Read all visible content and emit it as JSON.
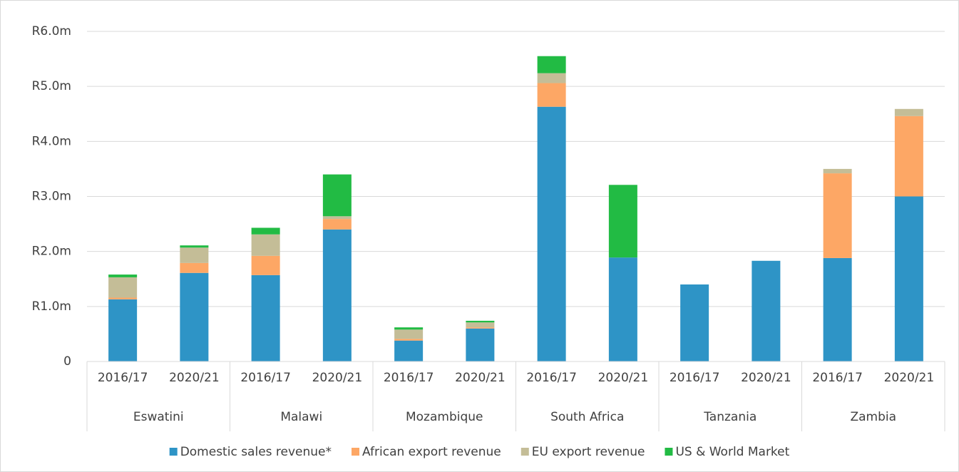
{
  "chart_data": {
    "type": "stacked_bar",
    "categories": [
      "2016/17",
      "2020/21",
      "2016/17",
      "2020/21",
      "2016/17",
      "2020/21",
      "2016/17",
      "2020/21",
      "2016/17",
      "2020/21",
      "2016/17",
      "2020/21"
    ],
    "groups": [
      "Eswatini",
      "Malawi",
      "Mozambique",
      "South Africa",
      "Tanzania",
      "Zambia"
    ],
    "series": [
      {
        "name": "Domestic sales revenue*",
        "color": "#2e94c6",
        "values": [
          1.13,
          1.61,
          1.57,
          2.4,
          0.38,
          0.6,
          4.63,
          1.89,
          1.4,
          1.83,
          1.88,
          3.0
        ]
      },
      {
        "name": "African export revenue",
        "color": "#fda765",
        "values": [
          0.03,
          0.18,
          0.35,
          0.19,
          0.03,
          0.02,
          0.43,
          0,
          0,
          0,
          1.54,
          1.46
        ]
      },
      {
        "name": "EU export revenue",
        "color": "#c4bd97",
        "values": [
          0.37,
          0.28,
          0.39,
          0.05,
          0.17,
          0.09,
          0.18,
          0,
          0,
          0,
          0.08,
          0.13
        ]
      },
      {
        "name": "US & World Market",
        "color": "#22bb44",
        "values": [
          0.05,
          0.04,
          0.12,
          0.76,
          0.04,
          0.03,
          0.31,
          1.32,
          0,
          0,
          0,
          0
        ]
      }
    ],
    "ylim": [
      0,
      6
    ],
    "yticks": [
      0,
      {
        "value": 1,
        "label": "R1.0m"
      },
      {
        "value": 2,
        "label": "R2.0m"
      },
      {
        "value": 3,
        "label": "R3.0m"
      },
      {
        "value": 4,
        "label": "R4.0m"
      },
      {
        "value": 5,
        "label": "R5.0m"
      },
      {
        "value": 6,
        "label": "R6.0m"
      }
    ],
    "grid": true,
    "legend": "bottom"
  }
}
